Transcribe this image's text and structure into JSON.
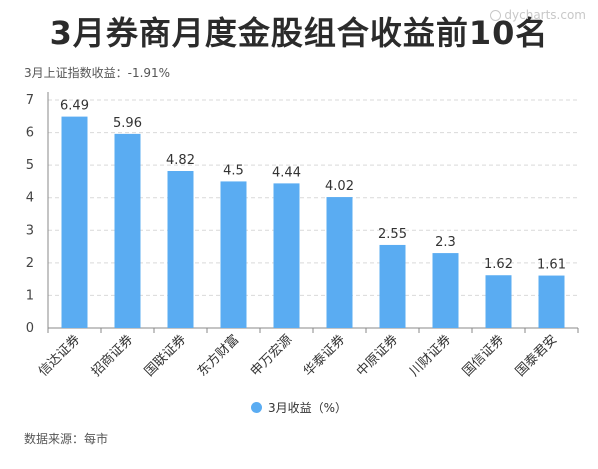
{
  "header": {
    "title": "3月券商月度金股组合收益前10名",
    "subtitle": "3月上证指数收益：-1.91%",
    "watermark": "dycharts.com"
  },
  "footer": {
    "source": "数据来源：每市"
  },
  "colors": {
    "bar": "#5aacf2",
    "grid": "#d9d9d9"
  },
  "chart_data": {
    "type": "bar",
    "categories": [
      "信达证券",
      "招商证券",
      "国联证券",
      "东方财富",
      "申万宏源",
      "华泰证券",
      "中原证券",
      "川财证券",
      "国信证券",
      "国泰君安"
    ],
    "values": [
      6.49,
      5.96,
      4.82,
      4.5,
      4.44,
      4.02,
      2.55,
      2.3,
      1.62,
      1.61
    ],
    "value_labels": [
      "6.49",
      "5.96",
      "4.82",
      "4.5",
      "4.44",
      "4.02",
      "2.55",
      "2.3",
      "1.62",
      "1.61"
    ],
    "ylim": [
      0,
      7
    ],
    "yticks": [
      "0",
      "1",
      "2",
      "3",
      "4",
      "5",
      "6",
      "7"
    ],
    "grid": true,
    "legend": {
      "position": "bottom",
      "entries": [
        "3月收益（%）"
      ]
    }
  }
}
